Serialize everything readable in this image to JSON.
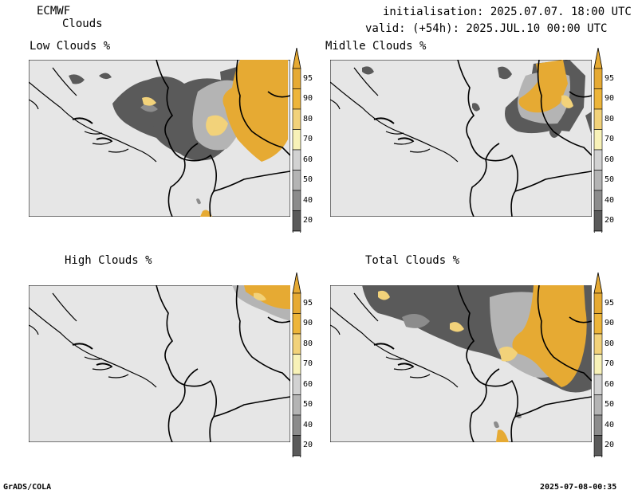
{
  "header": {
    "model": "ECMWF",
    "product": "Clouds",
    "init": "initialisation: 2025.07.07. 18:00 UTC",
    "valid": "valid: (+54h): 2025.JUL.10 00:00 UTC"
  },
  "panels": [
    {
      "title": "Low Clouds %"
    },
    {
      "title": "Midlle Clouds %"
    },
    {
      "title": "High Clouds %"
    },
    {
      "title": "Total Clouds %"
    }
  ],
  "colorbar": {
    "labels": [
      "95",
      "90",
      "80",
      "70",
      "60",
      "50",
      "40",
      "20"
    ],
    "colors": {
      "c95": "#e6aa33",
      "c90": "#edb53a",
      "c80": "#f2d27a",
      "c70": "#f8f2b8",
      "c60": "#d2d2d2",
      "c50": "#b4b4b4",
      "c40": "#8c8c8c",
      "c20": "#5a5a5a",
      "under": "#ffffff",
      "background": "#e6e6e6"
    }
  },
  "footer": {
    "left": "GrADS/COLA",
    "right": "2025-07-08-00:35"
  }
}
